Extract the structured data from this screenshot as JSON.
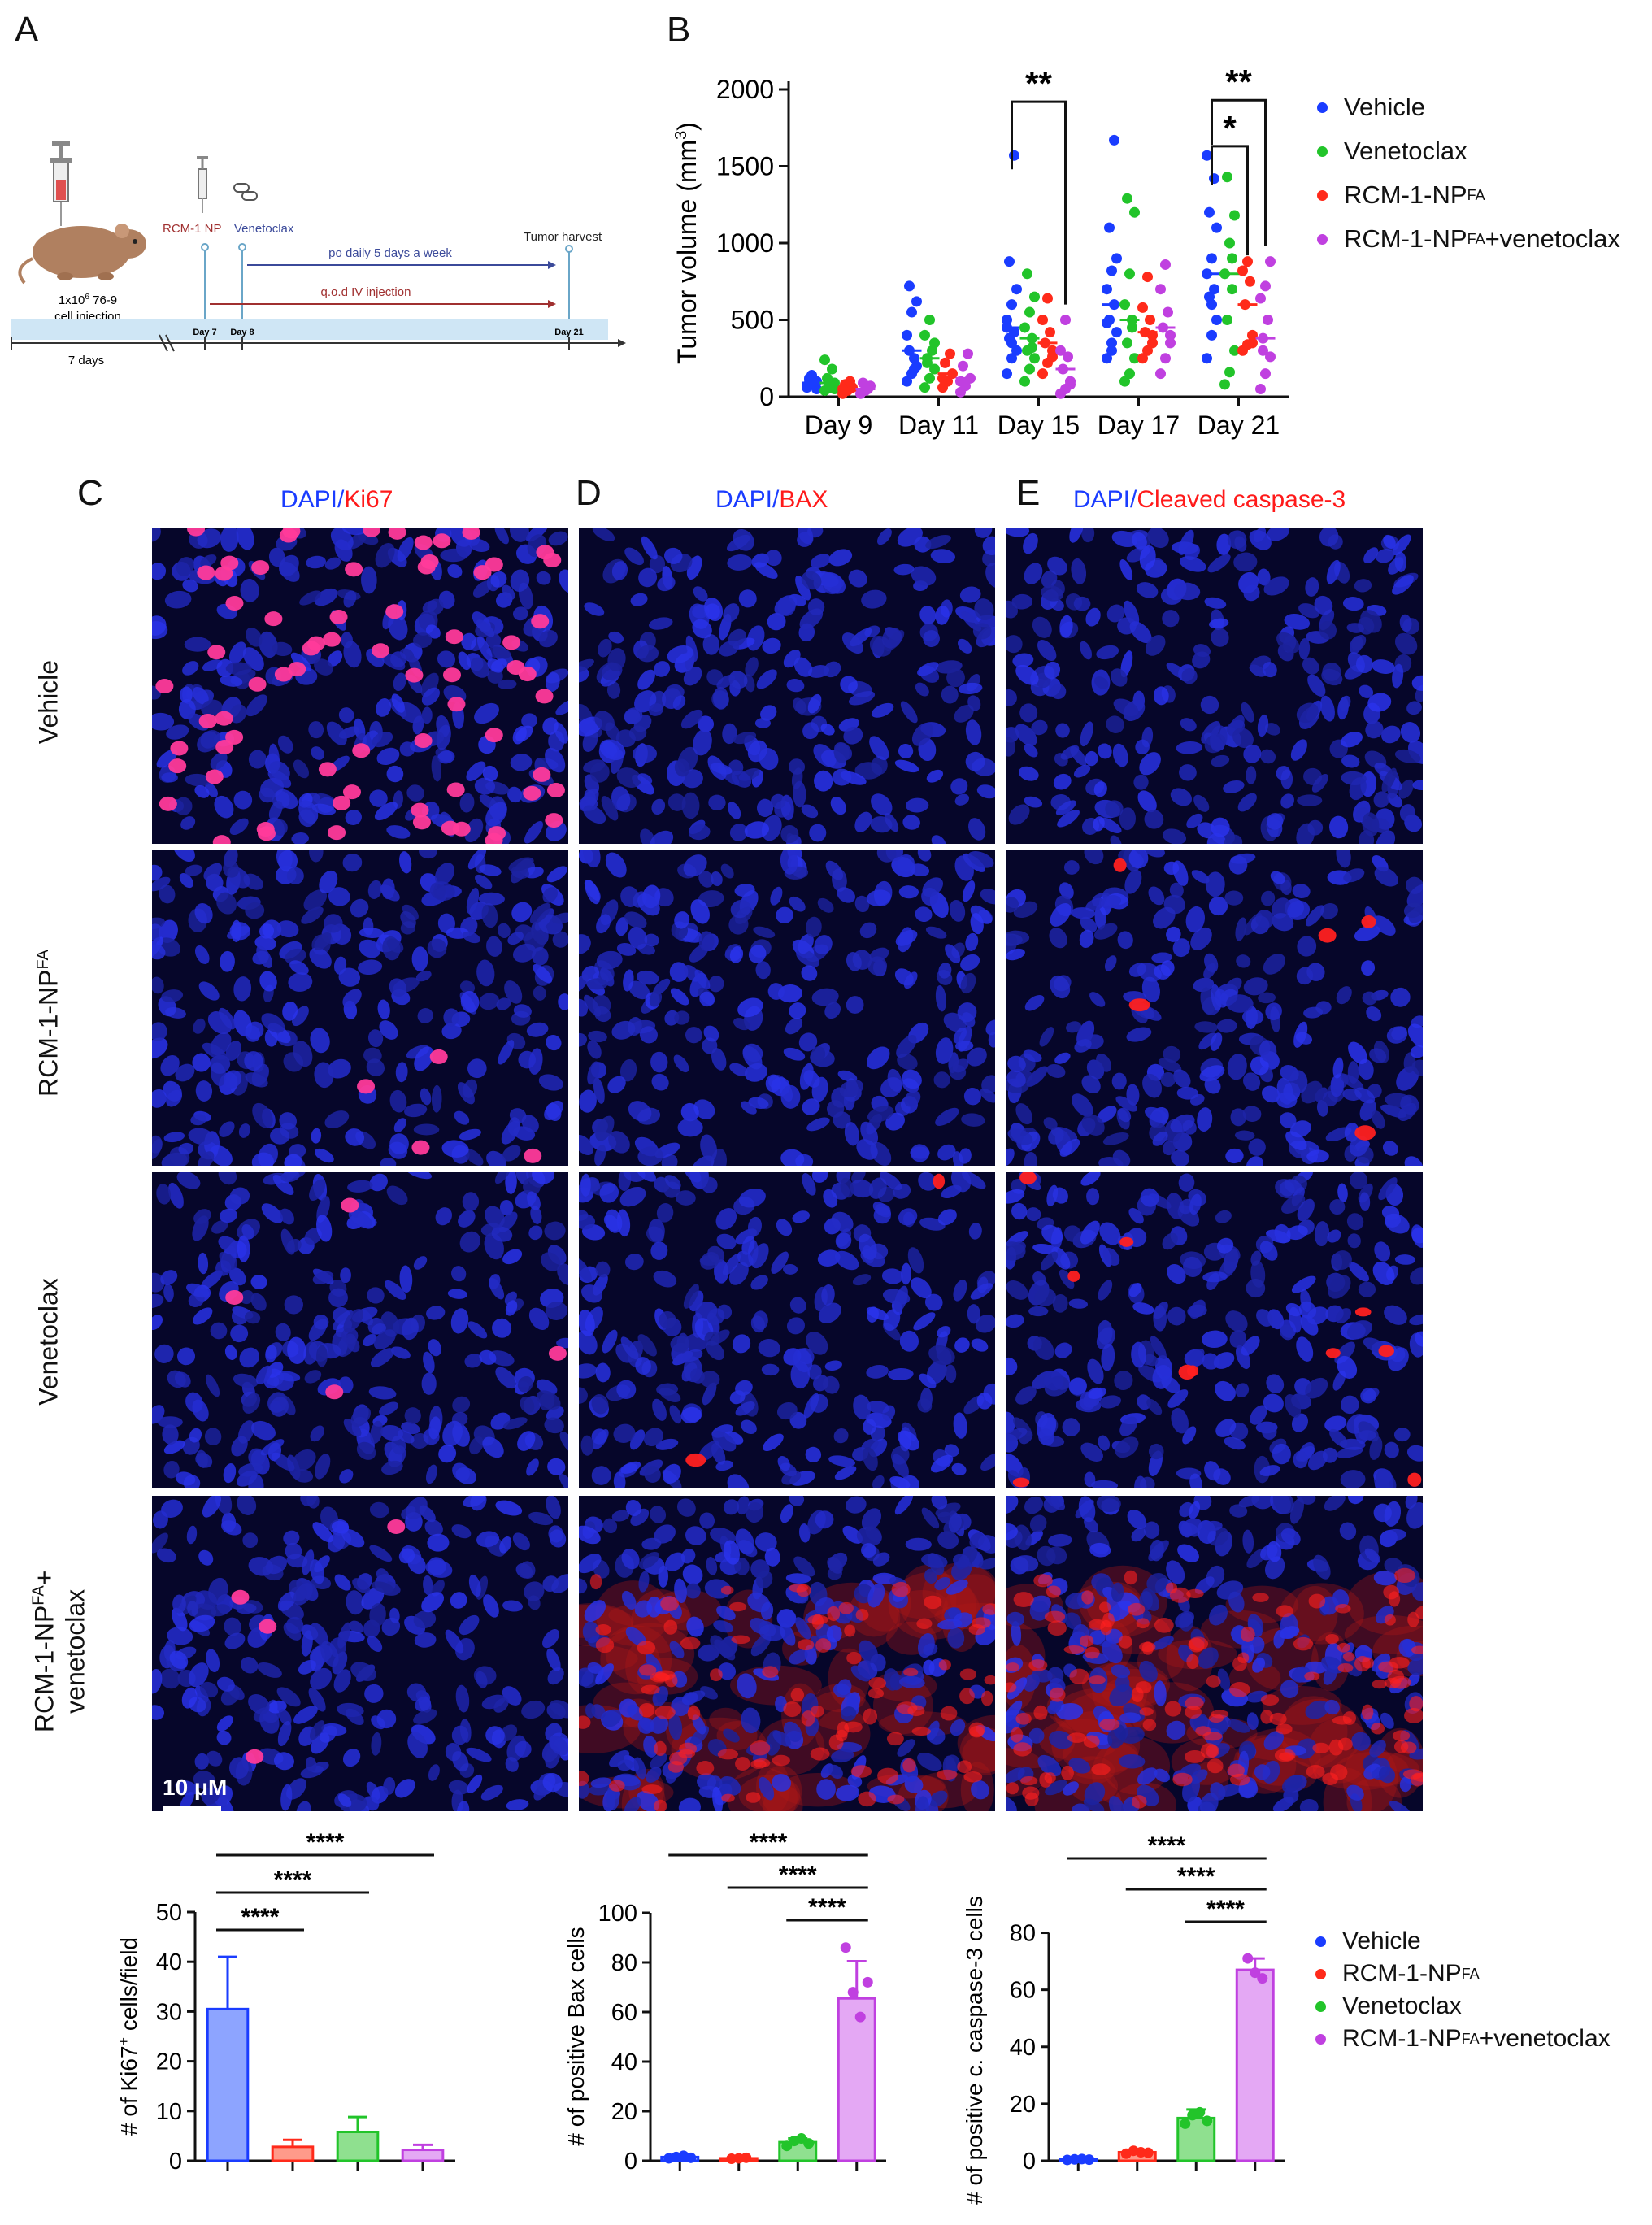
{
  "panels": {
    "A": "A",
    "B": "B",
    "C": "C",
    "D": "D",
    "E": "E"
  },
  "schematic": {
    "injection_line1": "1x10",
    "injection_sup": "6",
    "injection_line1b": " 76-9",
    "injection_line2": "cell injection",
    "rcm_label": "RCM-1 NP",
    "ven_label": "Venetoclax",
    "harvest": "Tumor harvest",
    "po": "po daily 5 days a week",
    "qod": "q.o.d IV injection",
    "day7": "Day 7",
    "day8": "Day 8",
    "day21": "Day 21",
    "seven_days": "7 days",
    "colors": {
      "po": "#3b4a9a",
      "qod": "#a03030",
      "bar": "#cfe6f5",
      "mouse": "#b08060"
    }
  },
  "colors": {
    "vehicle": "#1a3cff",
    "venetoclax": "#22c42a",
    "rcm": "#ff2a1a",
    "combo": "#c040e0"
  },
  "legendB": {
    "vehicle": "Vehicle",
    "venetoclax": "Venetoclax",
    "rcm": "RCM-1-NP",
    "rcm_sup": "FA",
    "combo_a": "RCM-1-NP",
    "combo_sup": "FA",
    "combo_b": "+venetoclax"
  },
  "legendBottom": {
    "vehicle": "Vehicle",
    "rcm": "RCM-1-NP",
    "rcm_sup": "FA",
    "venetoclax": "Venetoclax",
    "combo_a": "RCM-1-NP",
    "combo_sup": "FA",
    "combo_b": "+venetoclax"
  },
  "chart_data": [
    {
      "type": "scatter",
      "ylabel_a": "Tumor volume (mm",
      "ylabel_sup": "3",
      "ylabel_b": ")",
      "ylim": [
        0,
        2000
      ],
      "yticks": [
        "0",
        "500",
        "1000",
        "1500",
        "2000"
      ],
      "yticks_values": [
        0,
        500,
        1000,
        1500,
        2000
      ],
      "categories": [
        "Day 9",
        "Day 11",
        "Day 15",
        "Day 17",
        "Day 21"
      ],
      "series": [
        {
          "key": "vehicle",
          "points": [
            [
              60,
              80,
              100,
              120,
              90,
              70,
              140,
              50,
              110,
              85
            ],
            [
              100,
              150,
              200,
              300,
              250,
              400,
              550,
              620,
              720,
              180
            ],
            [
              150,
              250,
              300,
              380,
              420,
              500,
              600,
              700,
              880,
              1570,
              450,
              350
            ],
            [
              250,
              350,
              420,
              500,
              600,
              700,
              820,
              900,
              1100,
              1670,
              480,
              300
            ],
            [
              250,
              400,
              500,
              650,
              700,
              800,
              900,
              1100,
              1200,
              1420,
              1570,
              600
            ]
          ]
        },
        {
          "key": "venetoclax",
          "points": [
            [
              40,
              60,
              90,
              120,
              180,
              240,
              80,
              50
            ],
            [
              60,
              120,
              180,
              250,
              300,
              400,
              500,
              350,
              220
            ],
            [
              100,
              180,
              250,
              300,
              380,
              450,
              550,
              650,
              800,
              320
            ],
            [
              100,
              150,
              250,
              350,
              450,
              600,
              800,
              1200,
              1290,
              500
            ],
            [
              80,
              160,
              300,
              500,
              700,
              800,
              1000,
              1180,
              1430,
              900
            ]
          ]
        },
        {
          "key": "rcm",
          "points": [
            [
              20,
              40,
              60,
              80,
              100,
              50
            ],
            [
              60,
              100,
              150,
              220,
              280,
              120
            ],
            [
              150,
              220,
              300,
              350,
              420,
              500,
              640,
              260
            ],
            [
              250,
              300,
              350,
              420,
              500,
              580,
              780,
              400
            ],
            [
              300,
              340,
              400,
              600,
              750,
              820,
              880,
              350
            ]
          ]
        },
        {
          "key": "combo",
          "points": [
            [
              20,
              40,
              70,
              90,
              50
            ],
            [
              30,
              70,
              120,
              200,
              280,
              100
            ],
            [
              20,
              50,
              100,
              180,
              260,
              300,
              500,
              80
            ],
            [
              150,
              250,
              350,
              450,
              550,
              700,
              860,
              400
            ],
            [
              50,
              150,
              260,
              380,
              500,
              640,
              720,
              880,
              300
            ]
          ]
        }
      ],
      "sig": [
        "**",
        "*",
        "**"
      ]
    },
    {
      "type": "bar",
      "ylabel_a": "# of Ki67",
      "ylabel_sup": "+",
      "ylabel_b": " cells/field",
      "ylim": [
        0,
        50
      ],
      "yticks": [
        "0",
        "10",
        "20",
        "30",
        "40",
        "50"
      ],
      "yticks_values": [
        0,
        10,
        20,
        30,
        40,
        50
      ],
      "series": [
        {
          "key": "vehicle",
          "value": 30.5,
          "err": 10.5,
          "points": []
        },
        {
          "key": "rcm",
          "value": 2.8,
          "err": 1.4,
          "points": []
        },
        {
          "key": "venetoclax",
          "value": 5.8,
          "err": 3.0,
          "points": []
        },
        {
          "key": "combo",
          "value": 2.2,
          "err": 1.0,
          "points": []
        }
      ],
      "sig": [
        "****",
        "****",
        "****"
      ]
    },
    {
      "type": "bar",
      "ylabel_a": "# of positive Bax cells",
      "ylabel_sup": "",
      "ylabel_b": "",
      "ylim": [
        0,
        100
      ],
      "yticks": [
        "0",
        "20",
        "40",
        "60",
        "80",
        "100"
      ],
      "yticks_values": [
        0,
        20,
        40,
        60,
        80,
        100
      ],
      "series": [
        {
          "key": "vehicle",
          "value": 1.5,
          "err": 0.5,
          "points": [
            1,
            1.5,
            2,
            1.2
          ]
        },
        {
          "key": "rcm",
          "value": 1,
          "err": 0.4,
          "points": [
            0.8,
            1,
            1.2
          ]
        },
        {
          "key": "venetoclax",
          "value": 7.5,
          "err": 1.5,
          "points": [
            6,
            8,
            9,
            7
          ]
        },
        {
          "key": "combo",
          "value": 65.5,
          "err": 15,
          "points": [
            86,
            68,
            58,
            72
          ]
        }
      ],
      "sig": [
        "****",
        "****",
        "****"
      ]
    },
    {
      "type": "bar",
      "ylabel_a": "# of positive c. caspase-3 cells",
      "ylabel_sup": "",
      "ylabel_b": "",
      "ylim": [
        0,
        85
      ],
      "yticks": [
        "0",
        "20",
        "40",
        "60",
        "80"
      ],
      "yticks_values": [
        0,
        20,
        40,
        60,
        80
      ],
      "series": [
        {
          "key": "vehicle",
          "value": 0.5,
          "err": 0.3,
          "points": [
            0.3,
            0.5,
            0.6,
            0.4
          ]
        },
        {
          "key": "rcm",
          "value": 3,
          "err": 0.8,
          "points": [
            2.5,
            3.5,
            3,
            2.8
          ]
        },
        {
          "key": "venetoclax",
          "value": 15,
          "err": 3,
          "points": [
            13,
            16,
            17,
            14
          ]
        },
        {
          "key": "combo",
          "value": 67,
          "err": 4,
          "points": [
            71,
            66,
            64
          ]
        }
      ],
      "sig": [
        "****",
        "****",
        "****"
      ]
    }
  ],
  "micrographs": {
    "titles": {
      "C_a": "DAPI",
      "C_sep": "/",
      "C_b": "Ki67",
      "D_a": "DAPI",
      "D_sep": "/",
      "D_b": "BAX",
      "E_a": "DAPI",
      "E_sep": "/",
      "E_b": "Cleaved caspase-3"
    },
    "rows": {
      "r1": "Vehicle",
      "r2_a": "RCM-1-NP",
      "r2_sup": "FA",
      "r3": "Venetoclax",
      "r4_a": "RCM-1-NP",
      "r4_sup": "FA",
      "r4_b": "+",
      "r4_c": "venetoclax"
    },
    "scalebar": "10 μM",
    "red_density": [
      [
        70,
        0,
        0
      ],
      [
        4,
        0,
        5
      ],
      [
        4,
        2,
        10
      ],
      [
        4,
        90,
        120
      ]
    ]
  }
}
